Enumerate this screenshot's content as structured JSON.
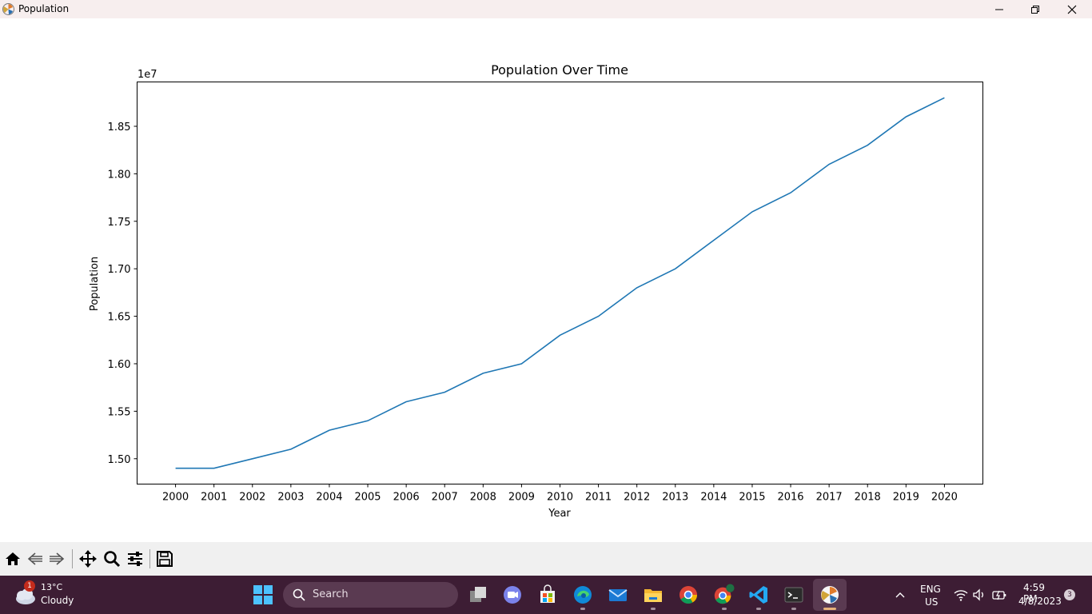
{
  "window": {
    "title": "Population"
  },
  "chart_data": {
    "type": "line",
    "title": "Population Over Time",
    "xlabel": "Year",
    "ylabel": "Population",
    "y_offset_label": "1e7",
    "x": [
      2000,
      2001,
      2002,
      2003,
      2004,
      2005,
      2006,
      2007,
      2008,
      2009,
      2010,
      2011,
      2012,
      2013,
      2014,
      2015,
      2016,
      2017,
      2018,
      2019,
      2020
    ],
    "x_tick_labels": [
      "2000",
      "2001",
      "2002",
      "2003",
      "2004",
      "2005",
      "2006",
      "2007",
      "2008",
      "2009",
      "2010",
      "2011",
      "2012",
      "2013",
      "2014",
      "2015",
      "2016",
      "2017",
      "2018",
      "2019",
      "2020"
    ],
    "series": [
      {
        "values": [
          14900000,
          14900000,
          15000000,
          15100000,
          15300000,
          15400000,
          15600000,
          15700000,
          15900000,
          16000000,
          16300000,
          16500000,
          16800000,
          17000000,
          17300000,
          17600000,
          17800000,
          18100000,
          18300000,
          18600000,
          18800000
        ],
        "color": "#1f77b4"
      }
    ],
    "y_ticks": [
      15000000,
      15500000,
      16000000,
      16500000,
      17000000,
      17500000,
      18000000,
      18500000
    ],
    "y_tick_labels": [
      "1.50",
      "1.55",
      "1.60",
      "1.65",
      "1.70",
      "1.75",
      "1.80",
      "1.85"
    ],
    "ylim": [
      14733000,
      18967000
    ],
    "xlim": [
      1999.0,
      2021.0
    ],
    "grid": false
  },
  "toolbar": {
    "buttons": [
      "home-icon",
      "back-arrow-icon",
      "forward-arrow-icon",
      "pan-icon",
      "zoom-icon",
      "configure-subplots-icon",
      "save-icon"
    ]
  },
  "taskbar": {
    "weather": {
      "temp": "13°C",
      "condition": "Cloudy",
      "badge": "1"
    },
    "search_placeholder": "Search",
    "tray": {
      "lang": "ENG",
      "region": "US",
      "time": "4:59 PM",
      "date": "4/8/2023",
      "notifications": "3"
    }
  }
}
